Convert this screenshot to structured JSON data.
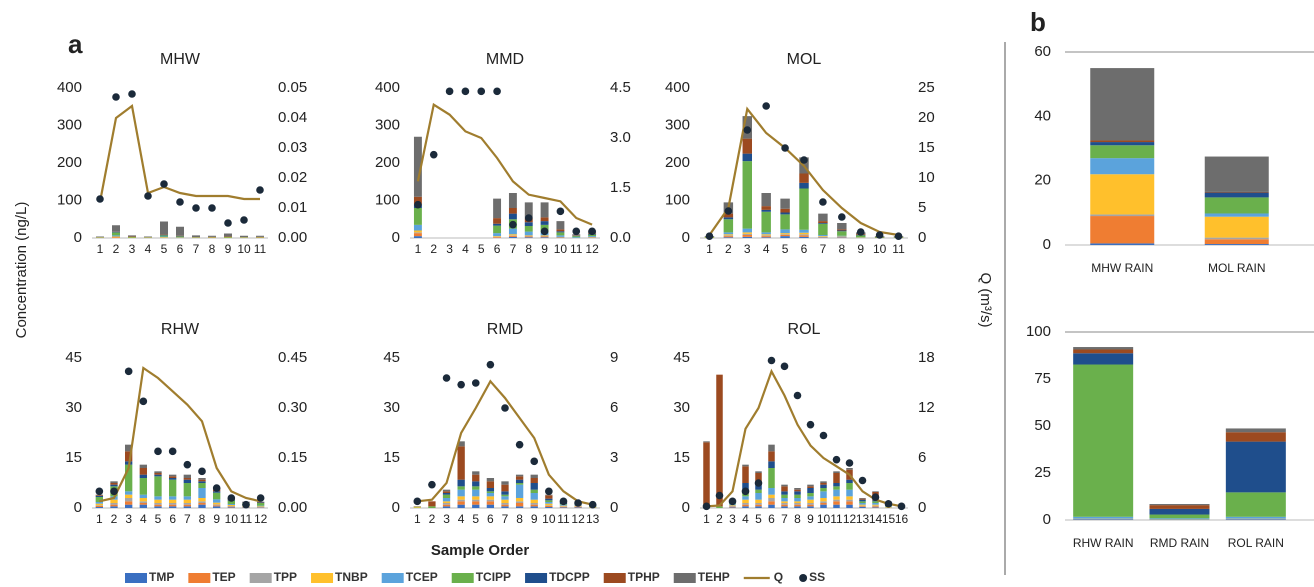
{
  "labels": {
    "a": "a",
    "b": "b",
    "y_label": "Concentration (ng/L)",
    "y2_label": "Q (m³/s)",
    "x_label": "Sample Order"
  },
  "legend": [
    {
      "name": "TMP",
      "color": "#3a6fc1",
      "kind": "bar"
    },
    {
      "name": "TEP",
      "color": "#ef7d32",
      "kind": "bar"
    },
    {
      "name": "TPP",
      "color": "#a5a5a5",
      "kind": "bar"
    },
    {
      "name": "TNBP",
      "color": "#ffc02c",
      "kind": "bar"
    },
    {
      "name": "TCEP",
      "color": "#5ba3dc",
      "kind": "bar"
    },
    {
      "name": "TCIPP",
      "color": "#6ab04c",
      "kind": "bar"
    },
    {
      "name": "TDCPP",
      "color": "#1f4e8c",
      "kind": "bar"
    },
    {
      "name": "TPHP",
      "color": "#9c4a20",
      "kind": "bar"
    },
    {
      "name": "TEHP",
      "color": "#6d6d6d",
      "kind": "bar"
    },
    {
      "name": "Q",
      "color": "#a07d2e",
      "kind": "line"
    },
    {
      "name": "SS",
      "color": "#1b2a3a",
      "kind": "dot"
    }
  ],
  "chart_data": [
    {
      "type": "bar-line",
      "title": "MHW",
      "categories": [
        "1",
        "2",
        "3",
        "4",
        "5",
        "6",
        "7",
        "8",
        "9",
        "10",
        "11"
      ],
      "stacks": [
        [
          0,
          0,
          0,
          0,
          0,
          0,
          0,
          0,
          0,
          0,
          0
        ],
        [
          0,
          2,
          0,
          0,
          0,
          0,
          0,
          0,
          0,
          0,
          0
        ],
        [
          0,
          0,
          0,
          0,
          0,
          0,
          0,
          0,
          0,
          0,
          0
        ],
        [
          1,
          2,
          1,
          1,
          2,
          1,
          1,
          1,
          1,
          1,
          1
        ],
        [
          0,
          3,
          0,
          0,
          2,
          1,
          0,
          0,
          0,
          0,
          0
        ],
        [
          1,
          8,
          2,
          1,
          3,
          2,
          1,
          1,
          2,
          1,
          1
        ],
        [
          0,
          2,
          0,
          0,
          1,
          1,
          0,
          0,
          0,
          0,
          0
        ],
        [
          0,
          1,
          1,
          0,
          1,
          1,
          0,
          1,
          1,
          0,
          1
        ],
        [
          2,
          16,
          3,
          2,
          35,
          24,
          5,
          3,
          8,
          4,
          3
        ]
      ],
      "q": [
        0.012,
        0.04,
        0.044,
        0.015,
        0.017,
        0.015,
        0.014,
        0.014,
        0.014,
        0.013,
        0.013
      ],
      "ss": [
        0.013,
        0.047,
        0.048,
        0.014,
        0.018,
        0.012,
        0.01,
        0.01,
        0.005,
        0.006,
        0.016
      ],
      "ylim": [
        0,
        400
      ],
      "yticks": [
        0,
        100,
        200,
        300,
        400
      ],
      "y2lim": [
        0,
        0.05
      ],
      "y2ticks": [
        {
          "value": 0,
          "label": "0.00"
        },
        0.01,
        0.02,
        0.03,
        0.04,
        0.05
      ]
    },
    {
      "type": "bar-line",
      "title": "MMD",
      "categories": [
        "1",
        "2",
        "3",
        "4",
        "5",
        "6",
        "7",
        "8",
        "9",
        "10",
        "11",
        "12"
      ],
      "stacks": [
        [
          5,
          0,
          0,
          0,
          0,
          0,
          3,
          2,
          2,
          1,
          0,
          0
        ],
        [
          8,
          0,
          0,
          0,
          0,
          2,
          3,
          2,
          2,
          1,
          0,
          1
        ],
        [
          2,
          0,
          0,
          0,
          0,
          1,
          1,
          1,
          1,
          0,
          0,
          0
        ],
        [
          5,
          0,
          0,
          0,
          0,
          2,
          3,
          2,
          2,
          1,
          0,
          1
        ],
        [
          15,
          0,
          0,
          0,
          0,
          8,
          15,
          10,
          8,
          4,
          2,
          3
        ],
        [
          45,
          0,
          0,
          0,
          0,
          20,
          25,
          15,
          20,
          8,
          3,
          4
        ],
        [
          10,
          0,
          0,
          0,
          0,
          5,
          15,
          10,
          10,
          3,
          1,
          2
        ],
        [
          20,
          0,
          0,
          0,
          0,
          15,
          15,
          10,
          10,
          5,
          1,
          2
        ],
        [
          160,
          0,
          0,
          0,
          0,
          52,
          40,
          43,
          40,
          22,
          3,
          7
        ]
      ],
      "q": [
        1.7,
        4.0,
        3.7,
        3.2,
        3.0,
        2.4,
        1.7,
        1.3,
        1.2,
        1.1,
        0.6,
        0.4
      ],
      "ss": [
        1.0,
        2.5,
        4.4,
        4.4,
        4.4,
        4.4,
        0.4,
        0.6,
        0.2,
        0.8,
        0.2,
        0.2
      ],
      "ylim": [
        0,
        400
      ],
      "yticks": [
        0,
        100,
        200,
        300,
        400
      ],
      "y2lim": [
        0,
        4.5
      ],
      "y2ticks": [
        {
          "value": 0,
          "label": "0.0"
        },
        1.5,
        {
          "value": 3,
          "label": "3.0"
        },
        4.5
      ]
    },
    {
      "type": "bar-line",
      "title": "MOL",
      "categories": [
        "1",
        "2",
        "3",
        "4",
        "5",
        "6",
        "7",
        "8",
        "9",
        "10",
        "11"
      ],
      "stacks": [
        [
          0,
          2,
          3,
          2,
          5,
          3,
          1,
          1,
          0,
          0,
          0
        ],
        [
          0,
          3,
          5,
          3,
          3,
          4,
          1,
          1,
          0,
          0,
          0
        ],
        [
          0,
          2,
          3,
          2,
          2,
          3,
          1,
          1,
          0,
          0,
          0
        ],
        [
          1,
          3,
          4,
          3,
          3,
          4,
          2,
          1,
          1,
          0,
          0
        ],
        [
          0,
          5,
          10,
          5,
          10,
          8,
          3,
          2,
          1,
          0,
          0
        ],
        [
          2,
          35,
          180,
          55,
          40,
          110,
          30,
          12,
          5,
          2,
          2
        ],
        [
          0,
          5,
          20,
          5,
          5,
          15,
          2,
          2,
          1,
          0,
          0
        ],
        [
          0,
          10,
          40,
          10,
          10,
          25,
          5,
          3,
          2,
          1,
          1
        ],
        [
          2,
          30,
          60,
          35,
          27,
          43,
          20,
          17,
          5,
          2,
          2
        ]
      ],
      "q": [
        0.5,
        5,
        21.5,
        17.5,
        15,
        12,
        8,
        5,
        2.5,
        1,
        0.5
      ],
      "ss": [
        0.3,
        4.5,
        18,
        22,
        15,
        13,
        6,
        3.5,
        1,
        0.5,
        0.3
      ],
      "ylim": [
        0,
        400
      ],
      "yticks": [
        0,
        100,
        200,
        300,
        400
      ],
      "y2lim": [
        0,
        25
      ],
      "y2ticks": [
        0,
        5,
        10,
        15,
        20,
        25
      ]
    },
    {
      "type": "bar-line",
      "title": "RHW",
      "categories": [
        "1",
        "2",
        "3",
        "4",
        "5",
        "6",
        "7",
        "8",
        "9",
        "10",
        "11",
        "12"
      ],
      "stacks": [
        [
          0.3,
          0.5,
          1,
          1,
          0.5,
          0.5,
          0.5,
          1,
          0.5,
          0.2,
          0.1,
          0.1
        ],
        [
          0.3,
          0.5,
          1,
          0.5,
          0.5,
          0.5,
          0.5,
          0.5,
          0.3,
          0.2,
          0.1,
          0.1
        ],
        [
          0.2,
          0.5,
          1,
          0.5,
          0.5,
          0.5,
          0.5,
          0.5,
          0.3,
          0.2,
          0.1,
          0.1
        ],
        [
          0.5,
          1,
          1,
          1,
          1,
          1,
          1,
          1,
          0.5,
          0.3,
          0.2,
          0.2
        ],
        [
          0.5,
          1,
          1,
          1,
          1,
          1,
          1,
          3,
          1,
          0.3,
          0.2,
          0.2
        ],
        [
          1.5,
          3,
          8,
          5,
          6,
          5,
          4,
          1.5,
          2,
          1,
          0.8,
          0.8
        ],
        [
          0.3,
          0.5,
          1,
          1,
          0.5,
          0.5,
          1,
          0.5,
          0.4,
          0.3,
          0.2,
          0.2
        ],
        [
          0.2,
          0.5,
          3,
          2,
          0.5,
          0.5,
          0.5,
          0.5,
          0.5,
          0.2,
          0.1,
          0.1
        ],
        [
          0.2,
          0.5,
          2,
          1,
          0.5,
          0.5,
          1,
          0.5,
          0.5,
          0.3,
          0.1,
          0.1
        ]
      ],
      "q": [
        0.02,
        0.03,
        0.12,
        0.42,
        0.39,
        0.35,
        0.31,
        0.26,
        0.12,
        0.05,
        0.03,
        0.02
      ],
      "ss": [
        0.05,
        0.05,
        0.41,
        0.32,
        0.17,
        0.17,
        0.13,
        0.11,
        0.06,
        0.03,
        0.01,
        0.03
      ],
      "ylim": [
        0,
        45
      ],
      "yticks": [
        0,
        15,
        30,
        45
      ],
      "y2lim": [
        0,
        0.45
      ],
      "y2ticks": [
        {
          "value": 0,
          "label": "0.00"
        },
        0.15,
        {
          "value": 0.3,
          "label": "0.30"
        },
        0.45
      ]
    },
    {
      "type": "bar-line",
      "title": "RMD",
      "categories": [
        "1",
        "2",
        "3",
        "4",
        "5",
        "6",
        "7",
        "8",
        "9",
        "10",
        "11",
        "12",
        "13"
      ],
      "stacks": [
        [
          0,
          0,
          0.5,
          1,
          1,
          1,
          0.5,
          0.5,
          0.5,
          0.3,
          0.2,
          0.2,
          0
        ],
        [
          0,
          0,
          0.5,
          1,
          1,
          1,
          0.5,
          1,
          0.5,
          0.3,
          0.2,
          0.2,
          0
        ],
        [
          0,
          0,
          0.5,
          0.5,
          0.5,
          0.5,
          0.5,
          0.5,
          0.5,
          0.2,
          0.1,
          0.1,
          0
        ],
        [
          0.2,
          0,
          0.5,
          1,
          1,
          1,
          1,
          1,
          1,
          0.5,
          0.2,
          0.2,
          0.2
        ],
        [
          0,
          0,
          1,
          2,
          2,
          1,
          1,
          4,
          2,
          0.5,
          0.3,
          0.3,
          0.2
        ],
        [
          0.2,
          0.5,
          1,
          1,
          1,
          0.5,
          0.5,
          0.5,
          1,
          0.5,
          0.2,
          0.2,
          0.2
        ],
        [
          0,
          0,
          0.5,
          2,
          1.5,
          1,
          1,
          1,
          2,
          0.5,
          0.3,
          0.3,
          0.2
        ],
        [
          0.1,
          1.5,
          0.5,
          10,
          2,
          2,
          2,
          1,
          1.5,
          1,
          0.3,
          0.3,
          0.1
        ],
        [
          0,
          0,
          0.5,
          1.5,
          1,
          1,
          1,
          0.5,
          1,
          0.2,
          0.2,
          0.2,
          0.1
        ]
      ],
      "q": [
        0.4,
        0.5,
        1.5,
        4.5,
        6,
        7.6,
        6.6,
        5.4,
        4.2,
        2.0,
        1.0,
        0.4,
        0.2
      ],
      "ss": [
        0.4,
        1.4,
        7.8,
        7.4,
        7.5,
        8.6,
        6,
        3.8,
        2.8,
        1,
        0.4,
        0.3,
        0.2
      ],
      "ylim": [
        0,
        45
      ],
      "yticks": [
        0,
        15,
        30,
        45
      ],
      "y2lim": [
        0,
        9
      ],
      "y2ticks": [
        0,
        3,
        6,
        9
      ]
    },
    {
      "type": "bar-line",
      "title": "ROL",
      "categories": [
        "1",
        "2",
        "3",
        "4",
        "5",
        "6",
        "7",
        "8",
        "9",
        "10",
        "11",
        "12",
        "13",
        "14",
        "15",
        "16"
      ],
      "stacks": [
        [
          0,
          0,
          0.2,
          0.5,
          0.5,
          1,
          0.5,
          0.5,
          0.5,
          1,
          1,
          1,
          0.3,
          0.2,
          0,
          0
        ],
        [
          0,
          0,
          0.2,
          0.5,
          0.5,
          1,
          0.5,
          0.5,
          0.5,
          0.5,
          1,
          1,
          0.2,
          0.3,
          0,
          0
        ],
        [
          0,
          0,
          0.2,
          0.5,
          0.5,
          1,
          0.5,
          0.5,
          0.5,
          0.5,
          0.5,
          0.5,
          0.2,
          0.2,
          0,
          0
        ],
        [
          0,
          0,
          0.2,
          1,
          1,
          1,
          0.5,
          0.5,
          1,
          1,
          1,
          1,
          0.3,
          0.3,
          0.2,
          0.1
        ],
        [
          0,
          0,
          0.3,
          1,
          2,
          2,
          1,
          1,
          1,
          2,
          2,
          2,
          0.5,
          0.5,
          0.2,
          0.1
        ],
        [
          0.2,
          0.5,
          0.3,
          1,
          1,
          6,
          1,
          1,
          1,
          1,
          1,
          2,
          0.5,
          0.5,
          0.2,
          0.1
        ],
        [
          0,
          0,
          0.2,
          3,
          2,
          2,
          1,
          1,
          1.5,
          1,
          1,
          1,
          0.5,
          0.3,
          0.1,
          0.1
        ],
        [
          19.5,
          39.5,
          0.2,
          5,
          3,
          3,
          1.5,
          0.5,
          0.5,
          0.5,
          3,
          3,
          0.3,
          2.5,
          0.2,
          0.1
        ],
        [
          0.3,
          0,
          0.2,
          0.5,
          0.5,
          2,
          0.5,
          0.5,
          0.5,
          0.5,
          0.5,
          0.5,
          0.2,
          0.2,
          0,
          0
        ]
      ],
      "q": [
        0.2,
        0.3,
        2,
        9.5,
        12,
        16.4,
        13.5,
        10,
        7.5,
        6,
        5,
        4,
        2,
        1,
        0.5,
        0.2
      ],
      "ss": [
        0.2,
        1.5,
        0.8,
        2,
        3,
        17.7,
        17,
        13.5,
        10,
        8.7,
        5.8,
        5.4,
        3.3,
        1.3,
        0.5,
        0.2
      ],
      "ylim": [
        0,
        45
      ],
      "yticks": [
        0,
        15,
        30,
        45
      ],
      "y2lim": [
        0,
        18
      ],
      "y2ticks": [
        0,
        6,
        12,
        18
      ]
    },
    {
      "type": "bar",
      "categories": [
        "MHW RAIN",
        "MOL RAIN"
      ],
      "stacks": [
        [
          0.5,
          0.3
        ],
        [
          8.5,
          1.5
        ],
        [
          0.5,
          0.5
        ],
        [
          12.5,
          6.5
        ],
        [
          5,
          1
        ],
        [
          4,
          5
        ],
        [
          1,
          1.5
        ],
        [
          0.5,
          0.2
        ],
        [
          22.5,
          11
        ]
      ],
      "ylim": [
        0,
        60
      ],
      "yticks": [
        0,
        20,
        40,
        60
      ]
    },
    {
      "type": "bar",
      "categories": [
        "RHW RAIN",
        "RMD RAIN",
        "ROL RAIN"
      ],
      "stacks": [
        [
          0.3,
          0.2,
          0.3
        ],
        [
          0,
          0,
          0
        ],
        [
          0.2,
          0,
          0.2
        ],
        [
          0.2,
          0.2,
          0.2
        ],
        [
          1,
          0.5,
          1
        ],
        [
          81,
          2,
          13
        ],
        [
          6,
          3,
          27
        ],
        [
          2,
          2,
          5
        ],
        [
          1.3,
          0.6,
          2
        ]
      ],
      "ylim": [
        0,
        100
      ],
      "yticks": [
        0,
        25,
        50,
        75,
        100
      ]
    }
  ]
}
